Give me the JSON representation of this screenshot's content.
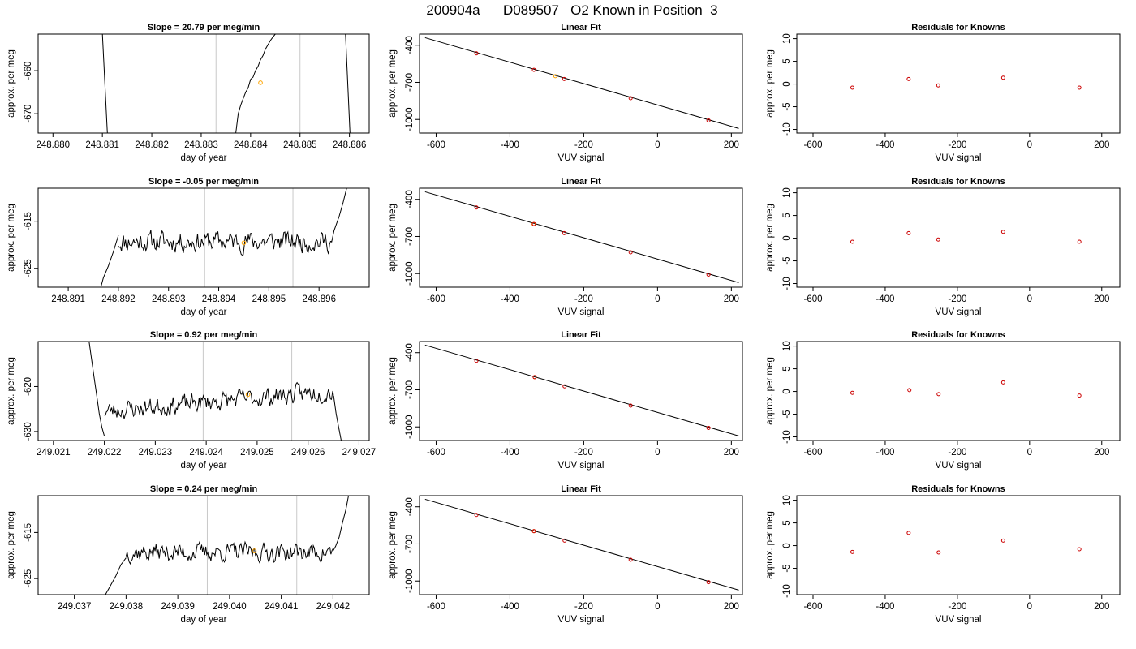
{
  "figure": {
    "title": "200904a      D089507   O2 Known in Position  3"
  },
  "colors": {
    "trace": "#000000",
    "vline": "#c8c8c8",
    "highlight": "#ffa500",
    "point": "#cc0000",
    "fit_line": "#000000"
  },
  "chart_data": [
    {
      "type": "line",
      "row": 1,
      "title": "Slope =  20.79  per meg/min",
      "xlabel": "day of year",
      "ylabel": "approx. per meg",
      "xlim": [
        248.8797,
        248.8864
      ],
      "ylim": [
        -674.5,
        -651.5
      ],
      "xticks": [
        248.88,
        248.881,
        248.882,
        248.883,
        248.884,
        248.885,
        248.886
      ],
      "xtick_labels": [
        "248.880",
        "248.881",
        "248.882",
        "248.883",
        "248.884",
        "248.885",
        "248.886"
      ],
      "yticks": [
        -660,
        -670
      ],
      "ytick_labels": [
        "-660",
        "-670"
      ],
      "vlines": [
        248.8833,
        248.885
      ],
      "highlight_point": {
        "x": 248.8842,
        "y": -662.8
      },
      "trace_segments": [
        {
          "x": [
            248.881,
            248.8811
          ],
          "y": [
            -651.5,
            -674.5
          ]
        },
        {
          "x": [
            248.8837,
            248.88375,
            248.8838,
            248.88385,
            248.8839,
            248.88395,
            248.884,
            248.88405,
            248.8841,
            248.88415,
            248.8842,
            248.88425,
            248.8843,
            248.88435,
            248.8844,
            248.88445,
            248.8845
          ],
          "y": [
            -674.5,
            -670,
            -668,
            -666.5,
            -665,
            -664,
            -662,
            -661.5,
            -660,
            -659,
            -657.5,
            -656.5,
            -655,
            -654,
            -653,
            -652.2,
            -651.5
          ]
        },
        {
          "x": [
            248.88592,
            248.88601
          ],
          "y": [
            -651.5,
            -674.5
          ]
        }
      ]
    },
    {
      "type": "scatter",
      "row": 1,
      "title": "Linear Fit",
      "xlabel": "VUV signal",
      "ylabel": "approx. per meg",
      "xlim": [
        -645,
        230
      ],
      "ylim": [
        -1110,
        -310
      ],
      "xticks": [
        -600,
        -400,
        -200,
        0,
        200
      ],
      "xtick_labels": [
        "-600",
        "-400",
        "-200",
        "0",
        "200"
      ],
      "yticks": [
        -400,
        -700,
        -1000
      ],
      "ytick_labels": [
        "-400",
        "-700",
        "-1000"
      ],
      "fit_line": {
        "x": [
          -630,
          220
        ],
        "y": [
          -339,
          -1073
        ]
      },
      "points": {
        "x": [
          -491,
          -335,
          -253,
          -73,
          138
        ],
        "y": [
          -466,
          -599,
          -673,
          -828,
          -1008
        ]
      },
      "highlight": {
        "x": -277,
        "y": -650
      }
    },
    {
      "type": "scatter",
      "row": 1,
      "title": "Residuals for Knowns",
      "xlabel": "VUV signal",
      "ylabel": "approx. per meg",
      "xlim": [
        -645,
        250
      ],
      "ylim": [
        -10.8,
        11
      ],
      "xticks": [
        -600,
        -400,
        -200,
        0,
        200
      ],
      "xtick_labels": [
        "-600",
        "-400",
        "-200",
        "0",
        "200"
      ],
      "yticks": [
        10,
        5,
        0,
        -5,
        -10
      ],
      "ytick_labels": [
        "10",
        "5",
        "0",
        "-5",
        "-10"
      ],
      "points": {
        "x": [
          -491,
          -335,
          -253,
          -73,
          138
        ],
        "y": [
          -0.8,
          1.1,
          -0.3,
          1.4,
          -0.8
        ]
      }
    },
    {
      "type": "line",
      "row": 2,
      "title": "Slope =  -0.05  per meg/min",
      "xlabel": "day of year",
      "ylabel": "approx. per meg",
      "xlim": [
        248.8904,
        248.897
      ],
      "ylim": [
        -629,
        -608
      ],
      "xticks": [
        248.891,
        248.892,
        248.893,
        248.894,
        248.895,
        248.896
      ],
      "xtick_labels": [
        "248.891",
        "248.892",
        "248.893",
        "248.894",
        "248.895",
        "248.896"
      ],
      "yticks": [
        -615,
        -625
      ],
      "ytick_labels": [
        "-615",
        "-625"
      ],
      "vlines": [
        248.89372,
        248.89548
      ],
      "highlight_point": {
        "x": 248.8945,
        "y": -619.6
      },
      "trace_segments": [
        {
          "x": [
            248.89165,
            248.8917,
            248.8918,
            248.8919,
            248.892
          ],
          "y": [
            -629,
            -627,
            -624.5,
            -621.5,
            -618
          ]
        }
      ],
      "trace_noise": {
        "x_start": 248.892,
        "x_end": 248.89625,
        "base": -619.3,
        "amplitude": 2.2,
        "seed": 11,
        "steps": 210
      },
      "trace_tail": {
        "x": [
          248.89625,
          248.8963,
          248.8964,
          248.89648,
          248.89655
        ],
        "y": [
          -619.5,
          -617,
          -614,
          -611,
          -608
        ]
      }
    },
    {
      "type": "scatter",
      "row": 2,
      "title": "Linear Fit",
      "xlabel": "VUV signal",
      "ylabel": "approx. per meg",
      "xlim": [
        -645,
        230
      ],
      "ylim": [
        -1110,
        -310
      ],
      "xticks": [
        -600,
        -400,
        -200,
        0,
        200
      ],
      "xtick_labels": [
        "-600",
        "-400",
        "-200",
        "0",
        "200"
      ],
      "yticks": [
        -400,
        -700,
        -1000
      ],
      "ytick_labels": [
        "-400",
        "-700",
        "-1000"
      ],
      "fit_line": {
        "x": [
          -630,
          220
        ],
        "y": [
          -339,
          -1073
        ]
      },
      "points": {
        "x": [
          -491,
          -335,
          -253,
          -73,
          138
        ],
        "y": [
          -466,
          -599,
          -673,
          -828,
          -1008
        ]
      },
      "highlight": {
        "x": -336,
        "y": -600
      }
    },
    {
      "type": "scatter",
      "row": 2,
      "title": "Residuals for Knowns",
      "xlabel": "VUV signal",
      "ylabel": "approx. per meg",
      "xlim": [
        -645,
        250
      ],
      "ylim": [
        -10.8,
        11
      ],
      "xticks": [
        -600,
        -400,
        -200,
        0,
        200
      ],
      "xtick_labels": [
        "-600",
        "-400",
        "-200",
        "0",
        "200"
      ],
      "yticks": [
        10,
        5,
        0,
        -5,
        -10
      ],
      "ytick_labels": [
        "10",
        "5",
        "0",
        "-5",
        "-10"
      ],
      "points": {
        "x": [
          -491,
          -335,
          -253,
          -73,
          138
        ],
        "y": [
          -0.8,
          1.1,
          -0.3,
          1.4,
          -0.8
        ]
      }
    },
    {
      "type": "line",
      "row": 3,
      "title": "Slope =  0.92  per meg/min",
      "xlabel": "day of year",
      "ylabel": "approx. per meg",
      "xlim": [
        249.0207,
        249.0272
      ],
      "ylim": [
        -632,
        -610
      ],
      "xticks": [
        249.021,
        249.022,
        249.023,
        249.024,
        249.025,
        249.026,
        249.027
      ],
      "xtick_labels": [
        "249.021",
        "249.022",
        "249.023",
        "249.024",
        "249.025",
        "249.026",
        "249.027"
      ],
      "yticks": [
        -620,
        -630
      ],
      "ytick_labels": [
        "-620",
        "-630"
      ],
      "vlines": [
        249.02394,
        249.02568
      ],
      "highlight_point": {
        "x": 249.02482,
        "y": -621.8
      },
      "trace_segments": [
        {
          "x": [
            249.0217,
            249.02175,
            249.0218,
            249.02185,
            249.0219,
            249.02195,
            249.022
          ],
          "y": [
            -610,
            -614,
            -618,
            -622,
            -626,
            -629,
            -631
          ]
        }
      ],
      "trace_noise": {
        "x_start": 249.022,
        "x_end": 249.0265,
        "base": -625.5,
        "amplitude": 2.1,
        "seed": 23,
        "steps": 220,
        "trend": 4.5
      },
      "trace_tail": {
        "x": [
          249.0265,
          249.02655,
          249.0266,
          249.02665
        ],
        "y": [
          -622,
          -626,
          -629,
          -632
        ]
      }
    },
    {
      "type": "scatter",
      "row": 3,
      "title": "Linear Fit",
      "xlabel": "VUV signal",
      "ylabel": "approx. per meg",
      "xlim": [
        -645,
        230
      ],
      "ylim": [
        -1110,
        -310
      ],
      "xticks": [
        -600,
        -400,
        -200,
        0,
        200
      ],
      "xtick_labels": [
        "-600",
        "-400",
        "-200",
        "0",
        "200"
      ],
      "yticks": [
        -400,
        -700,
        -1000
      ],
      "ytick_labels": [
        "-400",
        "-700",
        "-1000"
      ],
      "fit_line": {
        "x": [
          -630,
          220
        ],
        "y": [
          -339,
          -1073
        ]
      },
      "points": {
        "x": [
          -491,
          -333,
          -252,
          -73,
          138
        ],
        "y": [
          -466,
          -598,
          -672,
          -828,
          -1008
        ]
      },
      "highlight": {
        "x": -333,
        "y": -598
      }
    },
    {
      "type": "scatter",
      "row": 3,
      "title": "Residuals for Knowns",
      "xlabel": "VUV signal",
      "ylabel": "approx. per meg",
      "xlim": [
        -645,
        250
      ],
      "ylim": [
        -10.8,
        11
      ],
      "xticks": [
        -600,
        -400,
        -200,
        0,
        200
      ],
      "xtick_labels": [
        "-600",
        "-400",
        "-200",
        "0",
        "200"
      ],
      "yticks": [
        10,
        5,
        0,
        -5,
        -10
      ],
      "ytick_labels": [
        "10",
        "5",
        "0",
        "-5",
        "-10"
      ],
      "points": {
        "x": [
          -491,
          -333,
          -252,
          -73,
          138
        ],
        "y": [
          -0.3,
          0.3,
          -0.6,
          2.0,
          -0.9
        ]
      }
    },
    {
      "type": "line",
      "row": 4,
      "title": "Slope =  0.24  per meg/min",
      "xlabel": "day of year",
      "ylabel": "approx. per meg",
      "xlim": [
        249.0363,
        249.0427
      ],
      "ylim": [
        -628.5,
        -607
      ],
      "xticks": [
        249.037,
        249.038,
        249.039,
        249.04,
        249.041,
        249.042
      ],
      "xtick_labels": [
        "249.037",
        "249.038",
        "249.039",
        "249.040",
        "249.041",
        "249.042"
      ],
      "yticks": [
        -615,
        -625
      ],
      "ytick_labels": [
        "-615",
        "-625"
      ],
      "vlines": [
        249.03957,
        249.0413
      ],
      "highlight_point": {
        "x": 249.04048,
        "y": -619.0
      },
      "trace_segments": [
        {
          "x": [
            249.0376,
            249.0377,
            249.0378,
            249.0379,
            249.038
          ],
          "y": [
            -628.5,
            -626.5,
            -624.5,
            -622,
            -620.5
          ]
        }
      ],
      "trace_noise": {
        "x_start": 249.038,
        "x_end": 249.042,
        "base": -619.3,
        "amplitude": 2.0,
        "seed": 37,
        "steps": 200
      },
      "trace_tail": {
        "x": [
          249.042,
          249.04205,
          249.04212,
          249.04218,
          249.04225,
          249.0423
        ],
        "y": [
          -619,
          -618,
          -616,
          -613,
          -610,
          -607
        ]
      }
    },
    {
      "type": "scatter",
      "row": 4,
      "title": "Linear Fit",
      "xlabel": "VUV signal",
      "ylabel": "approx. per meg",
      "xlim": [
        -645,
        230
      ],
      "ylim": [
        -1110,
        -310
      ],
      "xticks": [
        -600,
        -400,
        -200,
        0,
        200
      ],
      "xtick_labels": [
        "-600",
        "-400",
        "-200",
        "0",
        "200"
      ],
      "yticks": [
        -400,
        -700,
        -1000
      ],
      "ytick_labels": [
        "-400",
        "-700",
        "-1000"
      ],
      "fit_line": {
        "x": [
          -630,
          220
        ],
        "y": [
          -339,
          -1073
        ]
      },
      "points": {
        "x": [
          -491,
          -335,
          -252,
          -73,
          138
        ],
        "y": [
          -466,
          -597,
          -673,
          -828,
          -1009
        ]
      },
      "highlight": {
        "x": -335,
        "y": -597
      }
    },
    {
      "type": "scatter",
      "row": 4,
      "title": "Residuals for Knowns",
      "xlabel": "VUV signal",
      "ylabel": "approx. per meg",
      "xlim": [
        -645,
        250
      ],
      "ylim": [
        -10.8,
        11
      ],
      "xticks": [
        -600,
        -400,
        -200,
        0,
        200
      ],
      "xtick_labels": [
        "-600",
        "-400",
        "-200",
        "0",
        "200"
      ],
      "yticks": [
        10,
        5,
        0,
        -5,
        -10
      ],
      "ytick_labels": [
        "10",
        "5",
        "0",
        "-5",
        "-10"
      ],
      "points": {
        "x": [
          -491,
          -335,
          -252,
          -73,
          138
        ],
        "y": [
          -1.4,
          2.8,
          -1.5,
          1.1,
          -0.8
        ]
      }
    }
  ]
}
